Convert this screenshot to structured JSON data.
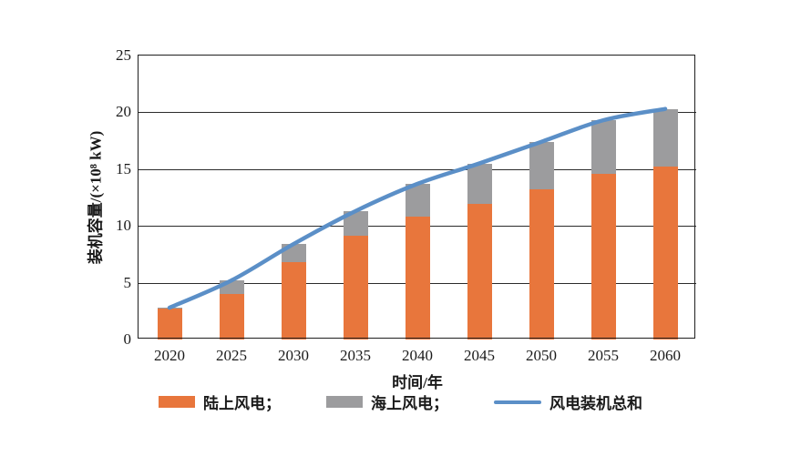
{
  "colors": {
    "onshore": "#E8763C",
    "offshore": "#9C9C9E",
    "total_line": "#5B8FC7",
    "axis": "#1f1f1f",
    "background": "#ffffff"
  },
  "chart_data": {
    "type": "bar",
    "subtype": "stacked-bar-with-line",
    "title": "",
    "xlabel": "时间/年",
    "ylabel": "装机容量/(×10⁸ kW)",
    "categories": [
      "2020",
      "2025",
      "2030",
      "2035",
      "2040",
      "2045",
      "2050",
      "2055",
      "2060"
    ],
    "series": [
      {
        "name": "陆上风电",
        "type": "bar",
        "color": "#E8763C",
        "values": [
          2.7,
          4.0,
          6.8,
          9.1,
          10.8,
          11.9,
          13.2,
          14.6,
          15.2
        ]
      },
      {
        "name": "海上风电",
        "type": "bar",
        "color": "#9C9C9E",
        "values": [
          0.1,
          1.2,
          1.6,
          2.2,
          2.9,
          3.6,
          4.2,
          4.7,
          5.1
        ]
      },
      {
        "name": "风电装机总和",
        "type": "line",
        "color": "#5B8FC7",
        "values": [
          2.8,
          5.2,
          8.4,
          11.3,
          13.7,
          15.5,
          17.4,
          19.3,
          20.3
        ]
      }
    ],
    "ylim": [
      0,
      25
    ],
    "yticks": [
      0,
      5,
      10,
      15,
      20,
      25
    ],
    "grid": true,
    "legend_position": "bottom"
  },
  "legend": {
    "items": [
      {
        "label": "陆上风电；",
        "swatch": "rect",
        "color": "#E8763C"
      },
      {
        "label": "海上风电；",
        "swatch": "rect",
        "color": "#9C9C9E"
      },
      {
        "label": "风电装机总和",
        "swatch": "line",
        "color": "#5B8FC7"
      }
    ]
  }
}
